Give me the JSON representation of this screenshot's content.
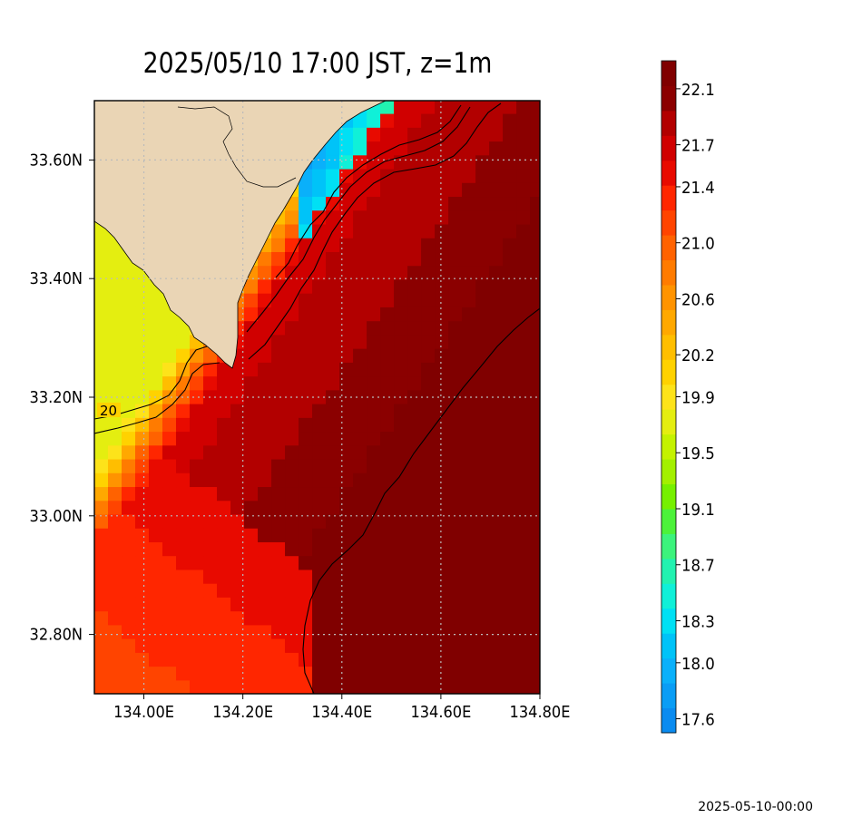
{
  "chart_data": {
    "type": "heatmap",
    "title": "2025/05/10 17:00 JST, z=1m",
    "xlabel": "",
    "ylabel": "",
    "xlim": [
      133.9,
      134.8
    ],
    "ylim": [
      32.7,
      33.7
    ],
    "x_ticks": [
      134.0,
      134.2,
      134.4,
      134.6,
      134.8
    ],
    "x_tick_labels": [
      "134.00E",
      "134.20E",
      "134.40E",
      "134.60E",
      "134.80E"
    ],
    "y_ticks": [
      32.8,
      33.0,
      33.2,
      33.4,
      33.6
    ],
    "y_tick_labels": [
      "32.80N",
      "33.00N",
      "33.20N",
      "33.40N",
      "33.60N"
    ],
    "grid": true,
    "variable_range": [
      17.5,
      22.3
    ],
    "colorbar_ticks": [
      17.6,
      18.0,
      18.3,
      18.7,
      19.1,
      19.5,
      19.9,
      20.2,
      20.6,
      21.0,
      21.4,
      21.7,
      22.1
    ],
    "colorbar_tick_labels": [
      "17.6",
      "18.0",
      "18.3",
      "18.7",
      "19.1",
      "19.5",
      "19.9",
      "20.2",
      "20.6",
      "21.0",
      "21.4",
      "21.7",
      "22.1"
    ],
    "contour_label": "20",
    "contours_on": true,
    "land_color": "#ead5b5"
  },
  "footer": {
    "timestamp": "2025-05-10-00:00"
  }
}
